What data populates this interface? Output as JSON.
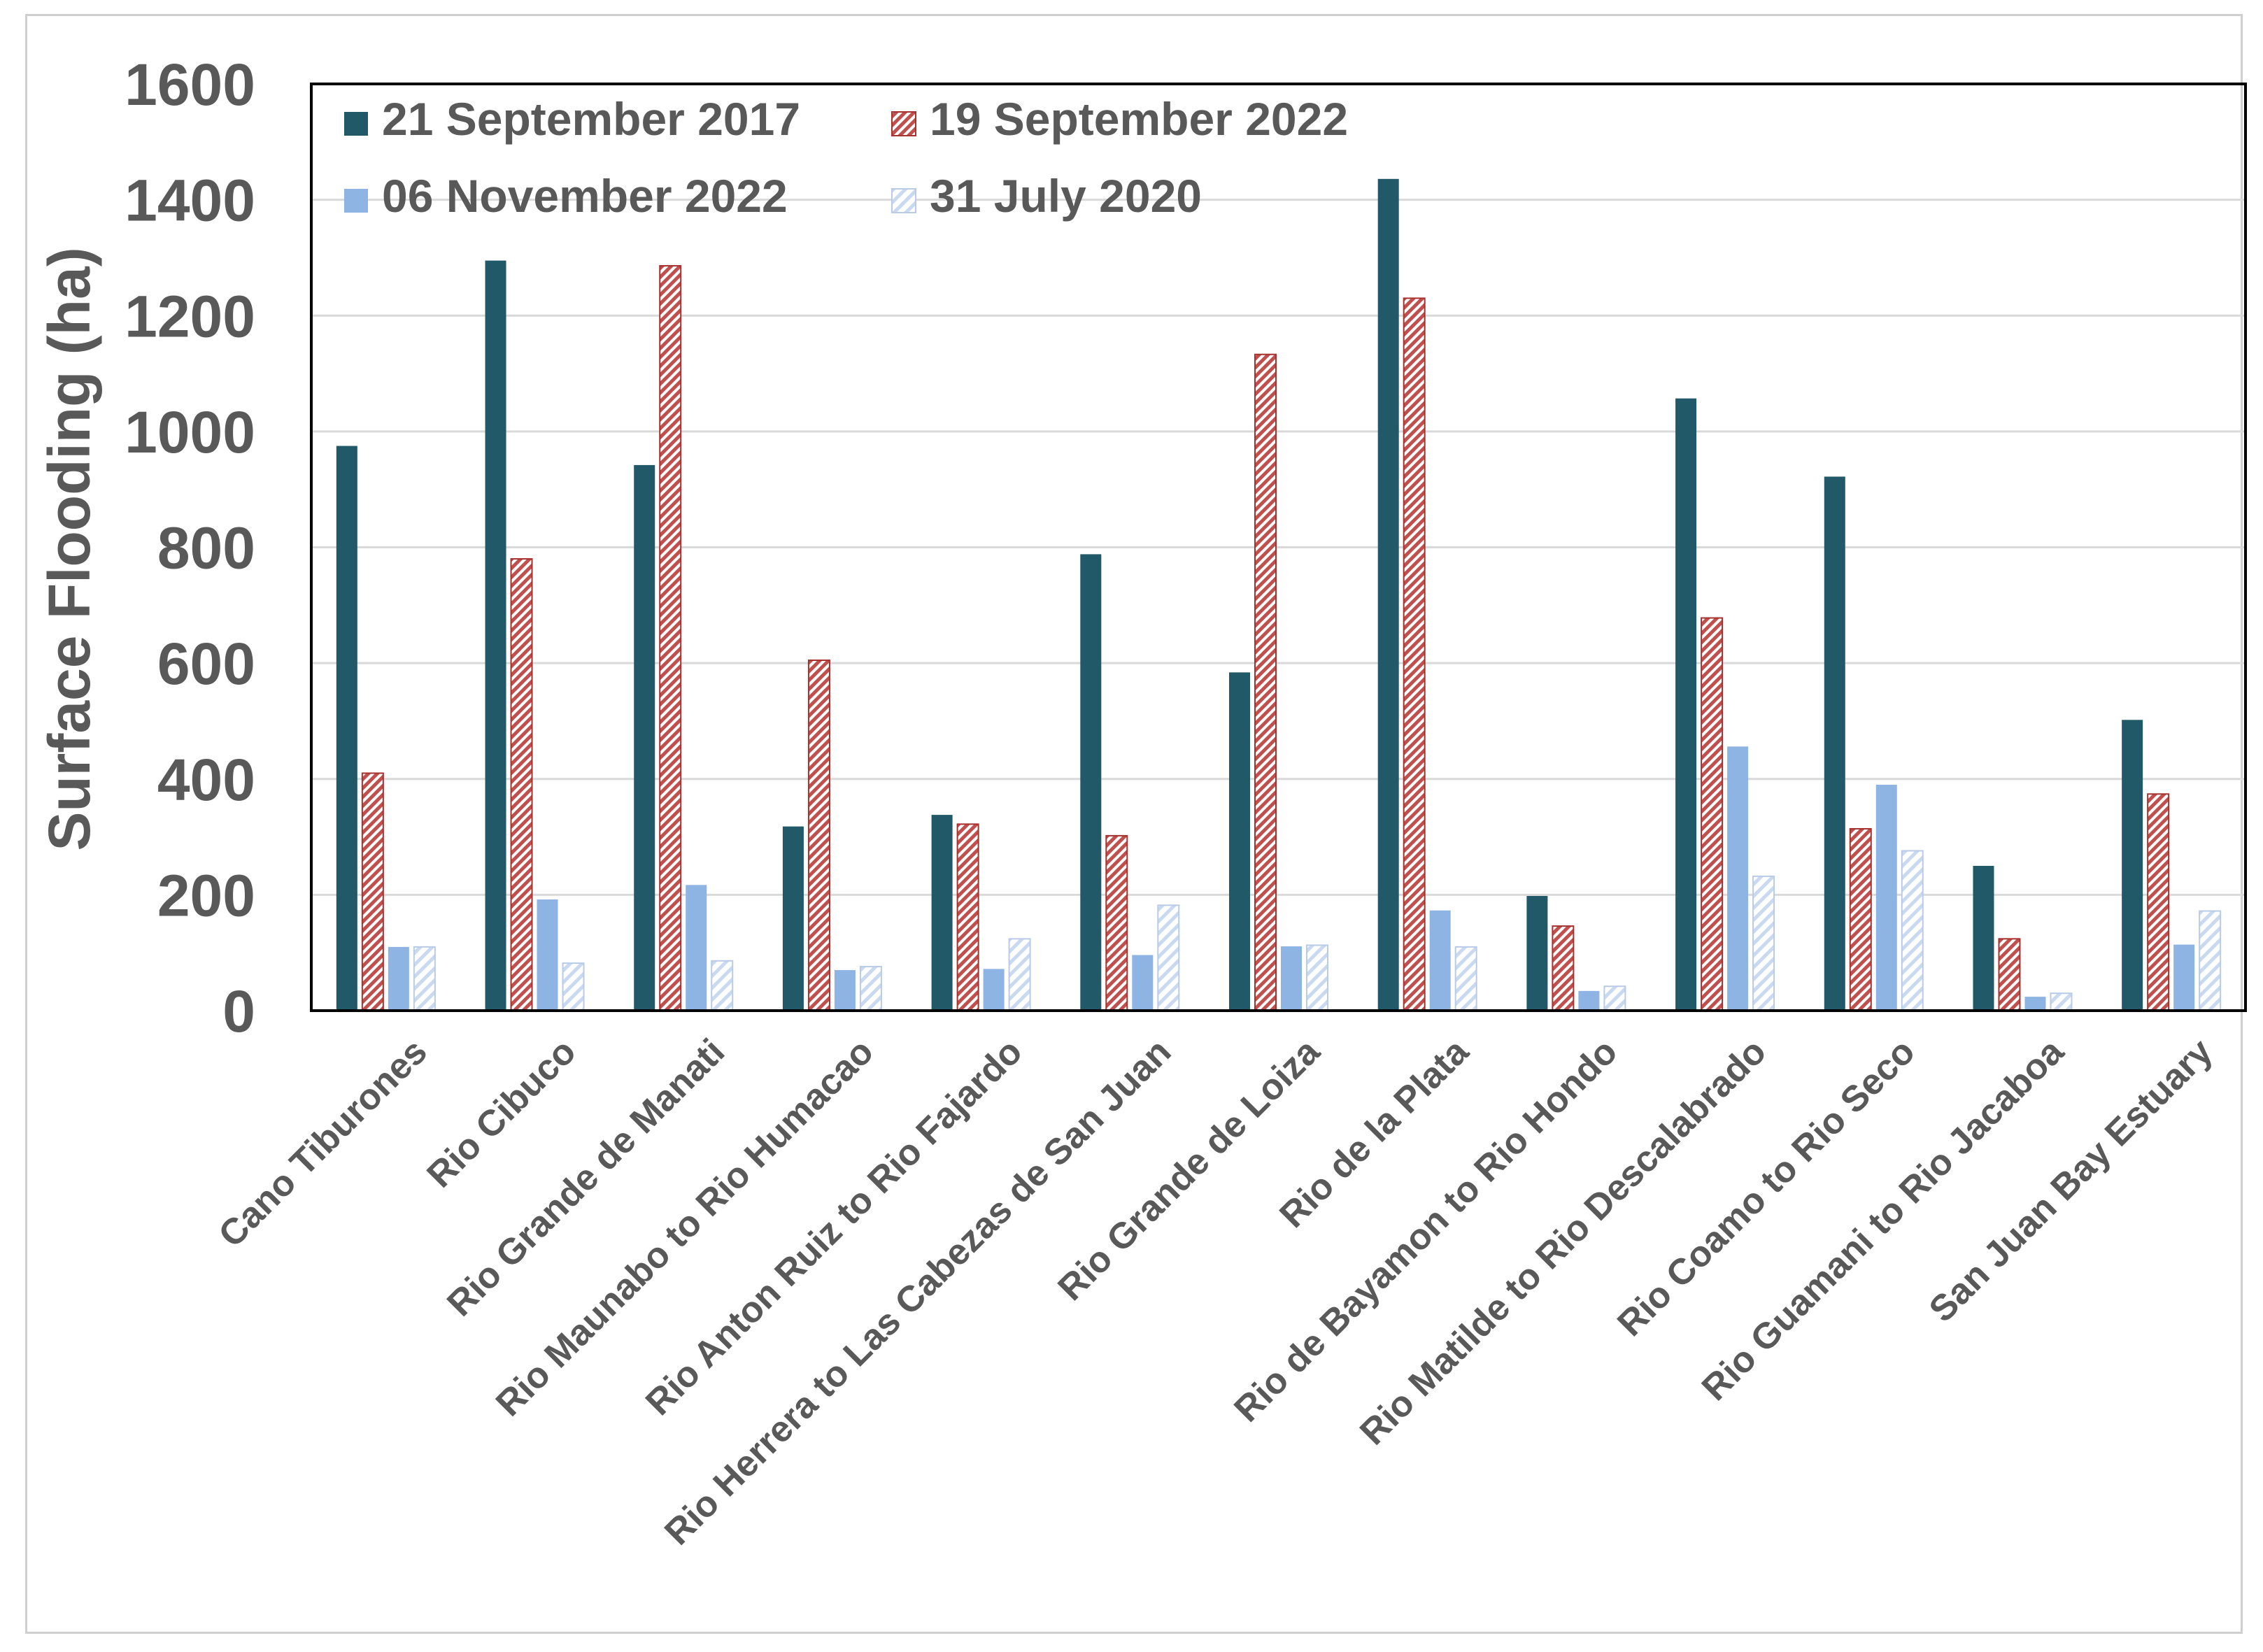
{
  "chart_data": {
    "type": "bar",
    "title": "",
    "xlabel": "",
    "ylabel": "Surface Flooding (ha)",
    "ylim": [
      0,
      1600
    ],
    "yticks": [
      0,
      200,
      400,
      600,
      800,
      1000,
      1200,
      1400,
      1600
    ],
    "grid": true,
    "legend_position": "top-left",
    "categories": [
      "Cano Tiburones",
      "Rio Cibuco",
      "Rio Grande de Manati",
      "Rio Maunabo to Rio Humacao",
      "Rio Anton Ruiz to Rio Fajardo",
      "Rio Herrera to Las Cabezas de San Juan",
      "Rio Grande de Loiza",
      "Rio de la Plata",
      "Rio de Bayamon to Rio Hondo",
      "Rio Matilde to Rio Descalabrado",
      "Rio Coamo to Rio Seco",
      "Rio Guamani to Rio Jacaboa",
      "San Juan Bay Estuary"
    ],
    "series": [
      {
        "name": "21 September 2017",
        "color": "#215968",
        "pattern": "solid",
        "values": [
          975,
          1295,
          942,
          318,
          338,
          788,
          584,
          1436,
          198,
          1057,
          922,
          250,
          502
        ]
      },
      {
        "name": "19 September 2022",
        "color": "#c0504d",
        "pattern": "hatch-red",
        "values": [
          410,
          780,
          1286,
          605,
          322,
          302,
          1133,
          1230,
          146,
          678,
          314,
          124,
          374
        ]
      },
      {
        "name": "06 November 2022",
        "color": "#8eb4e3",
        "pattern": "solid",
        "values": [
          110,
          192,
          217,
          70,
          72,
          96,
          111,
          173,
          34,
          456,
          390,
          24,
          114
        ]
      },
      {
        "name": "31 July 2020",
        "color": "#c9d9ef",
        "pattern": "hatch-light",
        "values": [
          110,
          82,
          86,
          76,
          124,
          182,
          113,
          110,
          42,
          232,
          276,
          30,
          172
        ]
      }
    ]
  }
}
